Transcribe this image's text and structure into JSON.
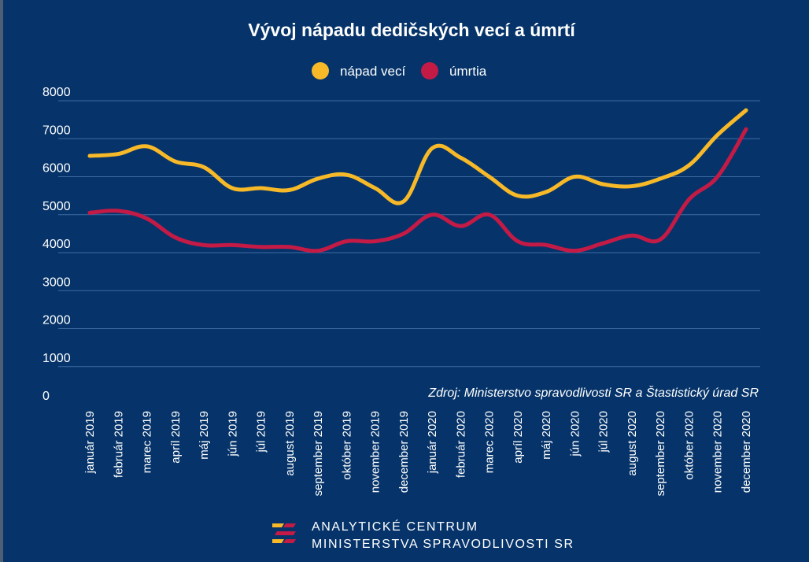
{
  "chart_data": {
    "type": "line",
    "title": "Vývoj nápadu dedičských vecí a úmrtí",
    "categories": [
      "január 2019",
      "február 2019",
      "marec 2019",
      "apríl 2019",
      "máj 2019",
      "jún 2019",
      "júl 2019",
      "august 2019",
      "september 2019",
      "október 2019",
      "november 2019",
      "december 2019",
      "január 2020",
      "február 2020",
      "marec 2020",
      "apríl 2020",
      "máj 2020",
      "jún 2020",
      "júl 2020",
      "august 2020",
      "september 2020",
      "október 2020",
      "november 2020",
      "december 2020"
    ],
    "series": [
      {
        "name": "nápad vecí",
        "color": "#f7b928",
        "values": [
          6550,
          6600,
          6800,
          6400,
          6250,
          5700,
          5700,
          5650,
          5950,
          6050,
          5700,
          5350,
          6750,
          6500,
          6000,
          5500,
          5600,
          6000,
          5800,
          5750,
          5950,
          6300,
          7100,
          7750
        ]
      },
      {
        "name": "úmrtia",
        "color": "#c41a46",
        "values": [
          5050,
          5100,
          4900,
          4400,
          4200,
          4200,
          4150,
          4150,
          4050,
          4300,
          4300,
          4500,
          5000,
          4700,
          5000,
          4300,
          4200,
          4050,
          4250,
          4450,
          4350,
          5400,
          6000,
          7250
        ]
      }
    ],
    "yticks": [
      0,
      1000,
      2000,
      3000,
      4000,
      5000,
      6000,
      7000,
      8000
    ],
    "ylim": [
      0,
      8000
    ],
    "xlabel": "",
    "ylabel": "",
    "grid": true,
    "legend_position": "top-center",
    "source": "Zdroj: Ministerstvo spravodlivosti SR a Štastistický úrad SR"
  },
  "footer": {
    "line1": "ANALYTICKÉ CENTRUM",
    "line2": "MINISTERSTVA SPRAVODLIVOSTI SR"
  },
  "colors": {
    "background": "#06346a",
    "outer": "#4e5e74",
    "grid": "#3c6aa2",
    "accent_yellow": "#f7b928",
    "accent_red": "#c41a46"
  }
}
